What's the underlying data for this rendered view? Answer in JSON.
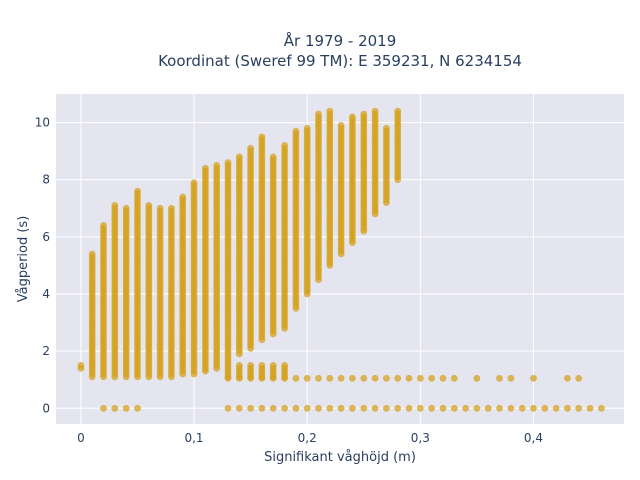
{
  "chart_data": {
    "type": "scatter",
    "title_line1": "År 1979 - 2019",
    "title_line2": "Koordinat (Sweref 99 TM): E 359231, N 6234154",
    "xlabel": "Signifikant våghöjd (m)",
    "ylabel": "Vågperiod (s)",
    "xlim": [
      -0.022,
      0.48
    ],
    "ylim": [
      -0.55,
      11.0
    ],
    "xticks": [
      0,
      0.1,
      0.2,
      0.3,
      0.4
    ],
    "xtick_labels": [
      "0",
      "0,1",
      "0,2",
      "0,3",
      "0,4"
    ],
    "yticks": [
      0,
      2,
      4,
      6,
      8,
      10
    ],
    "ytick_labels": [
      "0",
      "2",
      "4",
      "6",
      "8",
      "10"
    ],
    "grid": true,
    "marker_color": "#d4a017",
    "plot_background": "#e5e5f0",
    "columns": [
      {
        "x": 0.0,
        "ymin": 1.4,
        "ymax": 1.5
      },
      {
        "x": 0.01,
        "ymin": 1.1,
        "ymax": 5.4
      },
      {
        "x": 0.02,
        "ymin": 1.1,
        "ymax": 6.4
      },
      {
        "x": 0.03,
        "ymin": 1.1,
        "ymax": 7.1
      },
      {
        "x": 0.04,
        "ymin": 1.1,
        "ymax": 7.0
      },
      {
        "x": 0.05,
        "ymin": 1.1,
        "ymax": 7.6
      },
      {
        "x": 0.06,
        "ymin": 1.1,
        "ymax": 7.1
      },
      {
        "x": 0.07,
        "ymin": 1.1,
        "ymax": 7.0
      },
      {
        "x": 0.08,
        "ymin": 1.1,
        "ymax": 7.0
      },
      {
        "x": 0.09,
        "ymin": 1.2,
        "ymax": 7.4
      },
      {
        "x": 0.1,
        "ymin": 1.2,
        "ymax": 7.9
      },
      {
        "x": 0.11,
        "ymin": 1.3,
        "ymax": 8.4
      },
      {
        "x": 0.12,
        "ymin": 1.4,
        "ymax": 8.5
      },
      {
        "x": 0.13,
        "ymin": 1.6,
        "ymax": 8.6
      },
      {
        "x": 0.14,
        "ymin": 1.9,
        "ymax": 8.8
      },
      {
        "x": 0.15,
        "ymin": 2.1,
        "ymax": 9.1
      },
      {
        "x": 0.16,
        "ymin": 2.4,
        "ymax": 9.5
      },
      {
        "x": 0.17,
        "ymin": 2.6,
        "ymax": 8.8
      },
      {
        "x": 0.18,
        "ymin": 2.8,
        "ymax": 9.2
      },
      {
        "x": 0.19,
        "ymin": 3.5,
        "ymax": 9.7
      },
      {
        "x": 0.2,
        "ymin": 4.0,
        "ymax": 9.8
      },
      {
        "x": 0.21,
        "ymin": 4.5,
        "ymax": 10.3
      },
      {
        "x": 0.22,
        "ymin": 5.0,
        "ymax": 10.4
      },
      {
        "x": 0.23,
        "ymin": 5.4,
        "ymax": 9.9
      },
      {
        "x": 0.24,
        "ymin": 5.8,
        "ymax": 10.2
      },
      {
        "x": 0.25,
        "ymin": 6.2,
        "ymax": 10.3
      },
      {
        "x": 0.26,
        "ymin": 6.8,
        "ymax": 10.4
      },
      {
        "x": 0.27,
        "ymin": 7.2,
        "ymax": 9.8
      },
      {
        "x": 0.28,
        "ymin": 8.0,
        "ymax": 10.4
      }
    ],
    "low_band_x": [
      0.13,
      0.14,
      0.15,
      0.16,
      0.17,
      0.18
    ],
    "low_band_y": [
      1.1,
      1.5
    ],
    "row_y1_x": [
      0.13,
      0.14,
      0.15,
      0.16,
      0.17,
      0.18,
      0.19,
      0.2,
      0.21,
      0.22,
      0.23,
      0.24,
      0.25,
      0.26,
      0.27,
      0.28,
      0.29,
      0.3,
      0.31,
      0.32,
      0.33,
      0.35,
      0.37,
      0.38,
      0.4,
      0.43,
      0.44
    ],
    "row_y0_x": [
      0.02,
      0.03,
      0.04,
      0.05,
      0.13,
      0.14,
      0.15,
      0.16,
      0.17,
      0.18,
      0.19,
      0.2,
      0.21,
      0.22,
      0.23,
      0.24,
      0.25,
      0.26,
      0.27,
      0.28,
      0.29,
      0.3,
      0.31,
      0.32,
      0.33,
      0.34,
      0.35,
      0.36,
      0.37,
      0.38,
      0.39,
      0.4,
      0.41,
      0.42,
      0.43,
      0.44,
      0.45,
      0.46
    ]
  }
}
